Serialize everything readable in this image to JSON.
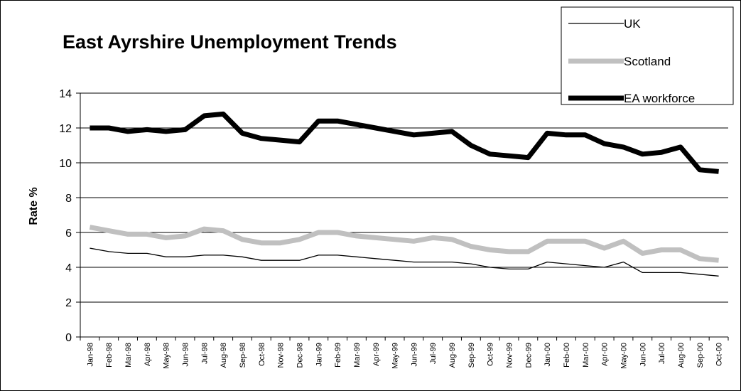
{
  "chart_data": {
    "type": "line",
    "title": "East Ayrshire Unemployment Trends",
    "xlabel": "",
    "ylabel": "Rate %",
    "ylim": [
      0,
      14
    ],
    "yticks": [
      0,
      2,
      4,
      6,
      8,
      10,
      12,
      14
    ],
    "grid": true,
    "legend_position": "top-right",
    "categories": [
      "Jan-98",
      "Feb-98",
      "Mar-98",
      "Apr-98",
      "May-98",
      "Jun-98",
      "Jul-98",
      "Aug-98",
      "Sep-98",
      "Oct-98",
      "Nov-98",
      "Dec-98",
      "Jan-99",
      "Feb-99",
      "Mar-99",
      "Apr-99",
      "May-99",
      "Jun-99",
      "Jul-99",
      "Aug-99",
      "Sep-99",
      "Oct-99",
      "Nov-99",
      "Dec-99",
      "Jan-00",
      "Feb-00",
      "Mar-00",
      "Apr-00",
      "May-00",
      "Jun-00",
      "Jul-00",
      "Aug-00",
      "Sep-00",
      "Oct-00"
    ],
    "series": [
      {
        "name": "UK",
        "color": "#000000",
        "style": "thin",
        "values": [
          5.1,
          4.9,
          4.8,
          4.8,
          4.6,
          4.6,
          4.7,
          4.7,
          4.6,
          4.4,
          4.4,
          4.4,
          4.7,
          4.7,
          4.6,
          4.5,
          4.4,
          4.3,
          4.3,
          4.3,
          4.2,
          4.0,
          3.9,
          3.9,
          4.3,
          4.2,
          4.1,
          4.0,
          4.3,
          3.7,
          3.7,
          3.7,
          3.6,
          3.5
        ]
      },
      {
        "name": "Scotland",
        "color": "#c0c0c0",
        "style": "thick",
        "values": [
          6.3,
          6.1,
          5.9,
          5.9,
          5.7,
          5.8,
          6.2,
          6.1,
          5.6,
          5.4,
          5.4,
          5.6,
          6.0,
          6.0,
          5.8,
          5.7,
          5.6,
          5.5,
          5.7,
          5.6,
          5.2,
          5.0,
          4.9,
          4.9,
          5.5,
          5.5,
          5.5,
          5.1,
          5.5,
          4.8,
          5.0,
          5.0,
          4.5,
          4.4
        ]
      },
      {
        "name": "EA workforce",
        "color": "#000000",
        "style": "bold",
        "values": [
          12.0,
          12.0,
          11.8,
          11.9,
          11.8,
          11.9,
          12.7,
          12.8,
          11.7,
          11.4,
          11.3,
          11.2,
          12.4,
          12.4,
          12.2,
          12.0,
          11.8,
          11.6,
          11.7,
          11.8,
          11.0,
          10.5,
          10.4,
          10.3,
          11.7,
          11.6,
          11.6,
          11.1,
          10.9,
          10.5,
          10.6,
          10.9,
          9.6,
          9.5
        ]
      }
    ]
  }
}
